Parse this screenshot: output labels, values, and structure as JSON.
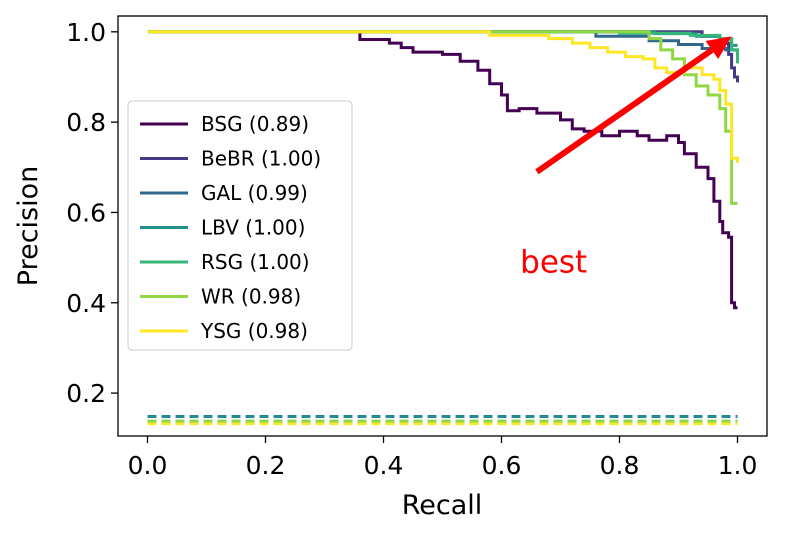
{
  "chart_data": {
    "type": "line",
    "title": "",
    "xlabel": "Recall",
    "ylabel": "Precision",
    "xlim": [
      -0.05,
      1.05
    ],
    "ylim": [
      0.105,
      1.035
    ],
    "xticks": [
      "0.0",
      "0.2",
      "0.4",
      "0.6",
      "0.8",
      "1.0"
    ],
    "yticks": [
      "0.2",
      "0.4",
      "0.6",
      "0.8",
      "1.0"
    ],
    "grid": false,
    "legend_position": "center-left",
    "series": [
      {
        "name": "BSG (0.89)",
        "color": "#440154",
        "baseline": 0.148,
        "points": [
          [
            0.0,
            1.0
          ],
          [
            0.36,
            1.0
          ],
          [
            0.36,
            0.983
          ],
          [
            0.41,
            0.983
          ],
          [
            0.41,
            0.975
          ],
          [
            0.43,
            0.975
          ],
          [
            0.43,
            0.965
          ],
          [
            0.45,
            0.965
          ],
          [
            0.45,
            0.955
          ],
          [
            0.5,
            0.955
          ],
          [
            0.5,
            0.95
          ],
          [
            0.53,
            0.95
          ],
          [
            0.53,
            0.935
          ],
          [
            0.56,
            0.935
          ],
          [
            0.56,
            0.915
          ],
          [
            0.58,
            0.915
          ],
          [
            0.58,
            0.885
          ],
          [
            0.6,
            0.885
          ],
          [
            0.6,
            0.86
          ],
          [
            0.61,
            0.86
          ],
          [
            0.61,
            0.825
          ],
          [
            0.63,
            0.825
          ],
          [
            0.63,
            0.83
          ],
          [
            0.66,
            0.83
          ],
          [
            0.66,
            0.82
          ],
          [
            0.7,
            0.82
          ],
          [
            0.7,
            0.805
          ],
          [
            0.72,
            0.805
          ],
          [
            0.72,
            0.785
          ],
          [
            0.74,
            0.785
          ],
          [
            0.74,
            0.78
          ],
          [
            0.77,
            0.78
          ],
          [
            0.77,
            0.77
          ],
          [
            0.8,
            0.77
          ],
          [
            0.8,
            0.78
          ],
          [
            0.83,
            0.78
          ],
          [
            0.83,
            0.77
          ],
          [
            0.85,
            0.77
          ],
          [
            0.85,
            0.76
          ],
          [
            0.88,
            0.76
          ],
          [
            0.88,
            0.77
          ],
          [
            0.9,
            0.77
          ],
          [
            0.9,
            0.755
          ],
          [
            0.91,
            0.755
          ],
          [
            0.91,
            0.73
          ],
          [
            0.93,
            0.73
          ],
          [
            0.93,
            0.7
          ],
          [
            0.95,
            0.7
          ],
          [
            0.95,
            0.675
          ],
          [
            0.96,
            0.675
          ],
          [
            0.96,
            0.625
          ],
          [
            0.97,
            0.625
          ],
          [
            0.97,
            0.58
          ],
          [
            0.975,
            0.58
          ],
          [
            0.975,
            0.555
          ],
          [
            0.985,
            0.555
          ],
          [
            0.985,
            0.545
          ],
          [
            0.99,
            0.545
          ],
          [
            0.99,
            0.4
          ],
          [
            0.995,
            0.4
          ],
          [
            0.995,
            0.389
          ],
          [
            1.0,
            0.389
          ]
        ]
      },
      {
        "name": "BeBR (1.00)",
        "color": "#443a83",
        "baseline": 0.148,
        "points": [
          [
            0.0,
            1.0
          ],
          [
            0.94,
            1.0
          ],
          [
            0.94,
            0.99
          ],
          [
            0.97,
            0.99
          ],
          [
            0.97,
            0.975
          ],
          [
            0.985,
            0.975
          ],
          [
            0.985,
            0.95
          ],
          [
            0.99,
            0.95
          ],
          [
            0.99,
            0.92
          ],
          [
            0.995,
            0.92
          ],
          [
            0.995,
            0.9
          ],
          [
            1.0,
            0.9
          ],
          [
            1.0,
            0.888
          ]
        ]
      },
      {
        "name": "GAL (0.99)",
        "color": "#31688e",
        "baseline": 0.148,
        "points": [
          [
            0.0,
            1.0
          ],
          [
            0.76,
            1.0
          ],
          [
            0.76,
            0.99
          ],
          [
            0.85,
            0.99
          ],
          [
            0.85,
            0.98
          ],
          [
            0.9,
            0.98
          ],
          [
            0.9,
            0.972
          ],
          [
            0.94,
            0.972
          ],
          [
            0.94,
            0.963
          ],
          [
            0.98,
            0.963
          ],
          [
            0.98,
            0.96
          ],
          [
            1.0,
            0.96
          ]
        ]
      },
      {
        "name": "LBV (1.00)",
        "color": "#21908d",
        "baseline": 0.148,
        "points": [
          [
            0.0,
            1.0
          ],
          [
            0.86,
            1.0
          ],
          [
            0.86,
            0.996
          ],
          [
            0.93,
            0.996
          ],
          [
            0.93,
            0.99
          ],
          [
            0.97,
            0.99
          ],
          [
            0.97,
            0.984
          ],
          [
            0.99,
            0.984
          ],
          [
            0.99,
            0.97
          ],
          [
            1.0,
            0.97
          ]
        ]
      },
      {
        "name": "RSG (1.00)",
        "color": "#35b779",
        "baseline": 0.138,
        "points": [
          [
            0.0,
            1.0
          ],
          [
            0.8,
            1.0
          ],
          [
            0.8,
            0.997
          ],
          [
            0.92,
            0.997
          ],
          [
            0.92,
            0.992
          ],
          [
            0.97,
            0.992
          ],
          [
            0.97,
            0.985
          ],
          [
            0.99,
            0.985
          ],
          [
            0.99,
            0.96
          ],
          [
            1.0,
            0.96
          ],
          [
            1.0,
            0.93
          ]
        ]
      },
      {
        "name": "WR (0.98)",
        "color": "#90d743",
        "baseline": 0.138,
        "points": [
          [
            0.0,
            1.0
          ],
          [
            0.85,
            1.0
          ],
          [
            0.85,
            0.985
          ],
          [
            0.87,
            0.985
          ],
          [
            0.87,
            0.96
          ],
          [
            0.89,
            0.96
          ],
          [
            0.89,
            0.94
          ],
          [
            0.91,
            0.94
          ],
          [
            0.91,
            0.905
          ],
          [
            0.93,
            0.905
          ],
          [
            0.93,
            0.88
          ],
          [
            0.95,
            0.88
          ],
          [
            0.95,
            0.86
          ],
          [
            0.97,
            0.86
          ],
          [
            0.97,
            0.83
          ],
          [
            0.98,
            0.83
          ],
          [
            0.98,
            0.78
          ],
          [
            0.99,
            0.78
          ],
          [
            0.99,
            0.62
          ],
          [
            1.0,
            0.62
          ]
        ]
      },
      {
        "name": "YSG (0.98)",
        "color": "#fde725",
        "baseline": 0.132,
        "points": [
          [
            0.0,
            1.0
          ],
          [
            0.58,
            1.0
          ],
          [
            0.58,
            0.992
          ],
          [
            0.68,
            0.992
          ],
          [
            0.68,
            0.985
          ],
          [
            0.72,
            0.985
          ],
          [
            0.72,
            0.975
          ],
          [
            0.75,
            0.975
          ],
          [
            0.75,
            0.965
          ],
          [
            0.78,
            0.965
          ],
          [
            0.78,
            0.955
          ],
          [
            0.81,
            0.955
          ],
          [
            0.81,
            0.945
          ],
          [
            0.84,
            0.945
          ],
          [
            0.84,
            0.94
          ],
          [
            0.86,
            0.94
          ],
          [
            0.86,
            0.92
          ],
          [
            0.88,
            0.92
          ],
          [
            0.88,
            0.91
          ],
          [
            0.91,
            0.91
          ],
          [
            0.91,
            0.92
          ],
          [
            0.94,
            0.92
          ],
          [
            0.94,
            0.905
          ],
          [
            0.96,
            0.905
          ],
          [
            0.96,
            0.895
          ],
          [
            0.97,
            0.895
          ],
          [
            0.97,
            0.87
          ],
          [
            0.98,
            0.87
          ],
          [
            0.98,
            0.84
          ],
          [
            0.99,
            0.84
          ],
          [
            0.99,
            0.72
          ],
          [
            1.0,
            0.72
          ],
          [
            1.0,
            0.71
          ]
        ]
      }
    ],
    "annotation": {
      "text": "best",
      "color": "#ff0000",
      "text_at": [
        0.68,
        0.5
      ],
      "arrow_from": [
        0.66,
        0.69
      ],
      "arrow_to": [
        0.99,
        0.99
      ]
    }
  }
}
